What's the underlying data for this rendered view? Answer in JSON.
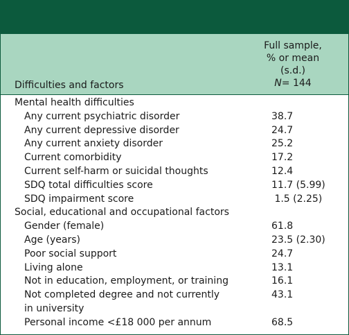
{
  "header": {
    "column1": "Difficulties and factors",
    "column2_line1": "Full sample,",
    "column2_line2": "% or mean",
    "column2_line3": "(s.d.)",
    "column2_n_label": "N",
    "column2_n_value": "= 144"
  },
  "sections": [
    {
      "title": "Mental health difficulties",
      "rows": [
        {
          "label": "Any current psychiatric disorder",
          "value": "38.7"
        },
        {
          "label": "Any current depressive disorder",
          "value": "24.7"
        },
        {
          "label": "Any current anxiety disorder",
          "value": "25.2"
        },
        {
          "label": "Current comorbidity",
          "value": "17.2"
        },
        {
          "label": "Current self-harm or suicidal thoughts",
          "value": "12.4"
        },
        {
          "label": "SDQ total difficulties score",
          "value": "11.7 (5.99)"
        },
        {
          "label": "SDQ impairment score",
          "value": " 1.5 (2.25)"
        }
      ]
    },
    {
      "title": "Social, educational and occupational factors",
      "rows": [
        {
          "label": "Gender (female)",
          "value": "61.8"
        },
        {
          "label": "Age (years)",
          "value": "23.5 (2.30)"
        },
        {
          "label": "Poor social support",
          "value": "24.7"
        },
        {
          "label": "Living alone",
          "value": "13.1"
        },
        {
          "label": "Not in education, employment, or training",
          "value": "16.1"
        },
        {
          "label": "Not completed degree and not currently in university",
          "value": "43.1"
        },
        {
          "label": "Personal income <£18 000 per annum",
          "value": "68.5"
        }
      ]
    }
  ]
}
